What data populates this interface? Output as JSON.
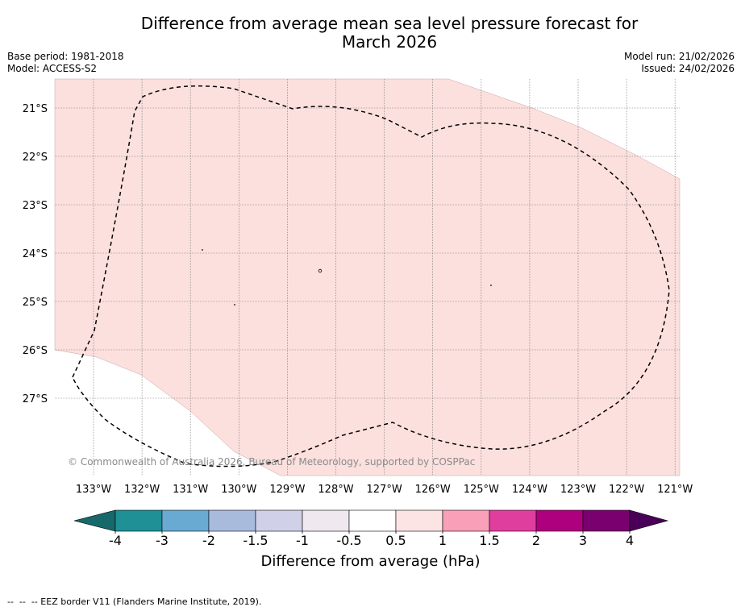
{
  "header": {
    "title_line1": "Difference from average mean sea level pressure forecast for",
    "title_line2": "March 2026",
    "base_period": "Base period: 1981-2018",
    "model": "Model: ACCESS-S2",
    "model_run": "Model run: 21/02/2026",
    "issued": "Issued: 24/02/2026"
  },
  "map": {
    "latitude_labels": [
      "21°S",
      "22°S",
      "23°S",
      "24°S",
      "25°S",
      "26°S",
      "27°S"
    ],
    "longitude_labels": [
      "133°W",
      "132°W",
      "131°W",
      "130°W",
      "129°W",
      "128°W",
      "127°W",
      "126°W",
      "125°W",
      "124°W",
      "123°W",
      "122°W",
      "121°W"
    ],
    "copyright": "© Commonwealth of Australia 2026, Bureau of Meteorology, supported by COSPPac",
    "colors": {
      "anomaly_fill": "#fbe0de",
      "background": "#ffffff"
    }
  },
  "colorbar": {
    "tick_labels": [
      "-4",
      "-3",
      "-2",
      "-1.5",
      "-1",
      "-0.5",
      "0.5",
      "1",
      "1.5",
      "2",
      "3",
      "4"
    ],
    "colors": [
      "#17686a",
      "#1e9096",
      "#69aad3",
      "#a8bbdd",
      "#d0d0e8",
      "#efe8ee",
      "#ffffff",
      "#fde4e4",
      "#f9a0b8",
      "#df3e9f",
      "#ae007e",
      "#7a006f",
      "#4a0058"
    ],
    "label": "Difference from average (hPa)"
  },
  "footer": {
    "legend_text": "--  --  -- EEZ border V11 (Flanders Marine Institute, 2019)."
  }
}
